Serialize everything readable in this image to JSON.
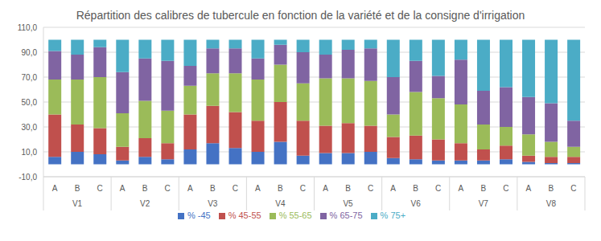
{
  "chart_data": {
    "type": "bar",
    "title": "Répartition des calibres de tubercule en fonction de la variété et de la consigne d'irrigation",
    "stacked": true,
    "grid": true,
    "legend": "bottom",
    "categories": [
      "A",
      "B",
      "C",
      "A",
      "B",
      "C",
      "A",
      "B",
      "C",
      "A",
      "B",
      "C",
      "A",
      "B",
      "C",
      "A",
      "B",
      "C",
      "A",
      "B",
      "C",
      "A",
      "B",
      "C"
    ],
    "groups": [
      "V1",
      "V2",
      "V3",
      "V4",
      "V5",
      "V6",
      "V7",
      "V8"
    ],
    "ylim": [
      -10,
      110
    ],
    "yticks": [
      {
        "value": -10,
        "label": "-10,0"
      },
      {
        "value": 10,
        "label": "10,0"
      },
      {
        "value": 30,
        "label": "30,0"
      },
      {
        "value": 50,
        "label": "50,0"
      },
      {
        "value": 70,
        "label": "70,0"
      },
      {
        "value": 90,
        "label": "90,0"
      },
      {
        "value": 110,
        "label": "110,0"
      }
    ],
    "series": [
      {
        "name": "% -45",
        "color": "#4472c4",
        "values": [
          6,
          10,
          8,
          3,
          6,
          4,
          12,
          17,
          13,
          10,
          18,
          7,
          9,
          9,
          10,
          5,
          4,
          3,
          3,
          3,
          4,
          2,
          1,
          1
        ]
      },
      {
        "name": "% 45-55",
        "color": "#c0504d",
        "values": [
          34,
          22,
          21,
          11,
          15,
          13,
          28,
          30,
          29,
          25,
          32,
          28,
          22,
          24,
          21,
          17,
          19,
          17,
          14,
          9,
          11,
          5,
          5,
          5
        ]
      },
      {
        "name": "% 55-65",
        "color": "#9bbb59",
        "values": [
          28,
          36,
          41,
          27,
          30,
          26,
          23,
          26,
          31,
          33,
          30,
          30,
          38,
          36,
          36,
          18,
          35,
          33,
          31,
          20,
          15,
          17,
          12,
          8
        ]
      },
      {
        "name": "% 65-75",
        "color": "#8064a2",
        "values": [
          23,
          20,
          24,
          33,
          34,
          40,
          16,
          20,
          20,
          17,
          16,
          25,
          19,
          23,
          26,
          30,
          25,
          18,
          36,
          27,
          32,
          30,
          31,
          21
        ]
      },
      {
        "name": "% 75+",
        "color": "#4bacc6",
        "values": [
          9,
          12,
          6,
          26,
          15,
          17,
          21,
          7,
          7,
          15,
          4,
          10,
          12,
          8,
          7,
          30,
          17,
          29,
          16,
          41,
          38,
          46,
          51,
          65
        ]
      }
    ]
  }
}
